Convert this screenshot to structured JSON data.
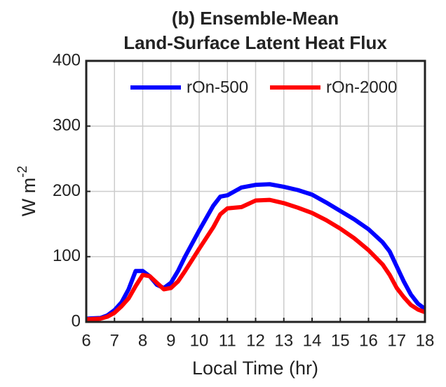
{
  "chart_data": {
    "type": "line",
    "title": [
      "(b) Ensemble-Mean",
      "Land-Surface Latent Heat Flux"
    ],
    "xlabel": "Local Time (hr)",
    "ylabel": "W m",
    "ylabel_superscript": "-2",
    "x": [
      6,
      6.5,
      6.75,
      7,
      7.25,
      7.5,
      7.75,
      8,
      8.25,
      8.5,
      8.75,
      9,
      9.25,
      9.5,
      10,
      10.5,
      10.75,
      11,
      11.5,
      12,
      12.5,
      13,
      13.5,
      14,
      14.5,
      15,
      15.5,
      16,
      16.5,
      16.75,
      17,
      17.25,
      17.5,
      17.75,
      18
    ],
    "series": [
      {
        "name": "rOn-500",
        "color": "#0000ff",
        "values": [
          5,
          6,
          10,
          18,
          30,
          50,
          78,
          78,
          70,
          57,
          52,
          60,
          78,
          100,
          140,
          178,
          192,
          194,
          206,
          210,
          211,
          207,
          202,
          195,
          183,
          170,
          157,
          142,
          122,
          108,
          85,
          62,
          42,
          28,
          20
        ]
      },
      {
        "name": "rOn-2000",
        "color": "#ff0000",
        "values": [
          4,
          5,
          8,
          14,
          24,
          36,
          55,
          72,
          70,
          60,
          50,
          52,
          62,
          78,
          112,
          145,
          165,
          174,
          176,
          186,
          187,
          182,
          175,
          167,
          156,
          143,
          128,
          110,
          88,
          72,
          52,
          38,
          26,
          19,
          15
        ]
      }
    ],
    "xlim": [
      6,
      18
    ],
    "xticks": [
      6,
      7,
      8,
      9,
      10,
      11,
      12,
      13,
      14,
      15,
      16,
      17,
      18
    ],
    "ylim": [
      0,
      400
    ],
    "yticks": [
      0,
      100,
      200,
      300,
      400
    ],
    "grid": true,
    "legend": "top"
  }
}
